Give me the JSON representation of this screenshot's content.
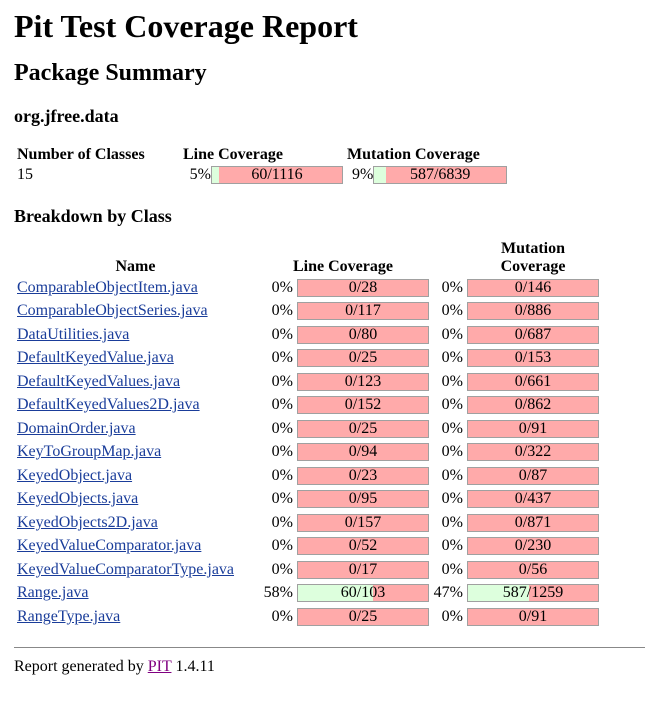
{
  "title": "Pit Test Coverage Report",
  "package_summary_title": "Package Summary",
  "package_name": "org.jfree.data",
  "summary": {
    "headers": {
      "classes": "Number of Classes",
      "line": "Line Coverage",
      "mutation": "Mutation Coverage"
    },
    "classes": "15",
    "line_pct": "5%",
    "line_text": "60/1116",
    "line_fraction": 0.054,
    "mutation_pct": "9%",
    "mutation_text": "587/6839",
    "mutation_fraction": 0.086
  },
  "breakdown_title": "Breakdown by Class",
  "breakdown_headers": {
    "name": "Name",
    "line": "Line Coverage",
    "mutation": "Mutation Coverage"
  },
  "classes": [
    {
      "name": "ComparableObjectItem.java",
      "line_pct": "0%",
      "line_text": "0/28",
      "line_fraction": 0,
      "mut_pct": "0%",
      "mut_text": "0/146",
      "mut_fraction": 0
    },
    {
      "name": "ComparableObjectSeries.java",
      "line_pct": "0%",
      "line_text": "0/117",
      "line_fraction": 0,
      "mut_pct": "0%",
      "mut_text": "0/886",
      "mut_fraction": 0
    },
    {
      "name": "DataUtilities.java",
      "line_pct": "0%",
      "line_text": "0/80",
      "line_fraction": 0,
      "mut_pct": "0%",
      "mut_text": "0/687",
      "mut_fraction": 0
    },
    {
      "name": "DefaultKeyedValue.java",
      "line_pct": "0%",
      "line_text": "0/25",
      "line_fraction": 0,
      "mut_pct": "0%",
      "mut_text": "0/153",
      "mut_fraction": 0
    },
    {
      "name": "DefaultKeyedValues.java",
      "line_pct": "0%",
      "line_text": "0/123",
      "line_fraction": 0,
      "mut_pct": "0%",
      "mut_text": "0/661",
      "mut_fraction": 0
    },
    {
      "name": "DefaultKeyedValues2D.java",
      "line_pct": "0%",
      "line_text": "0/152",
      "line_fraction": 0,
      "mut_pct": "0%",
      "mut_text": "0/862",
      "mut_fraction": 0
    },
    {
      "name": "DomainOrder.java",
      "line_pct": "0%",
      "line_text": "0/25",
      "line_fraction": 0,
      "mut_pct": "0%",
      "mut_text": "0/91",
      "mut_fraction": 0
    },
    {
      "name": "KeyToGroupMap.java",
      "line_pct": "0%",
      "line_text": "0/94",
      "line_fraction": 0,
      "mut_pct": "0%",
      "mut_text": "0/322",
      "mut_fraction": 0
    },
    {
      "name": "KeyedObject.java",
      "line_pct": "0%",
      "line_text": "0/23",
      "line_fraction": 0,
      "mut_pct": "0%",
      "mut_text": "0/87",
      "mut_fraction": 0
    },
    {
      "name": "KeyedObjects.java",
      "line_pct": "0%",
      "line_text": "0/95",
      "line_fraction": 0,
      "mut_pct": "0%",
      "mut_text": "0/437",
      "mut_fraction": 0
    },
    {
      "name": "KeyedObjects2D.java",
      "line_pct": "0%",
      "line_text": "0/157",
      "line_fraction": 0,
      "mut_pct": "0%",
      "mut_text": "0/871",
      "mut_fraction": 0
    },
    {
      "name": "KeyedValueComparator.java",
      "line_pct": "0%",
      "line_text": "0/52",
      "line_fraction": 0,
      "mut_pct": "0%",
      "mut_text": "0/230",
      "mut_fraction": 0
    },
    {
      "name": "KeyedValueComparatorType.java",
      "line_pct": "0%",
      "line_text": "0/17",
      "line_fraction": 0,
      "mut_pct": "0%",
      "mut_text": "0/56",
      "mut_fraction": 0
    },
    {
      "name": "Range.java",
      "line_pct": "58%",
      "line_text": "60/103",
      "line_fraction": 0.58,
      "mut_pct": "47%",
      "mut_text": "587/1259",
      "mut_fraction": 0.47
    },
    {
      "name": "RangeType.java",
      "line_pct": "0%",
      "line_text": "0/25",
      "line_fraction": 0,
      "mut_pct": "0%",
      "mut_text": "0/91",
      "mut_fraction": 0
    }
  ],
  "footer": {
    "prefix": "Report generated by",
    "link": "PIT",
    "version": "1.4.11"
  },
  "colors": {
    "covered": "#ddffdd",
    "uncovered": "#ffaaaa",
    "link": "#1a3d9a",
    "visited_link": "#800080"
  }
}
